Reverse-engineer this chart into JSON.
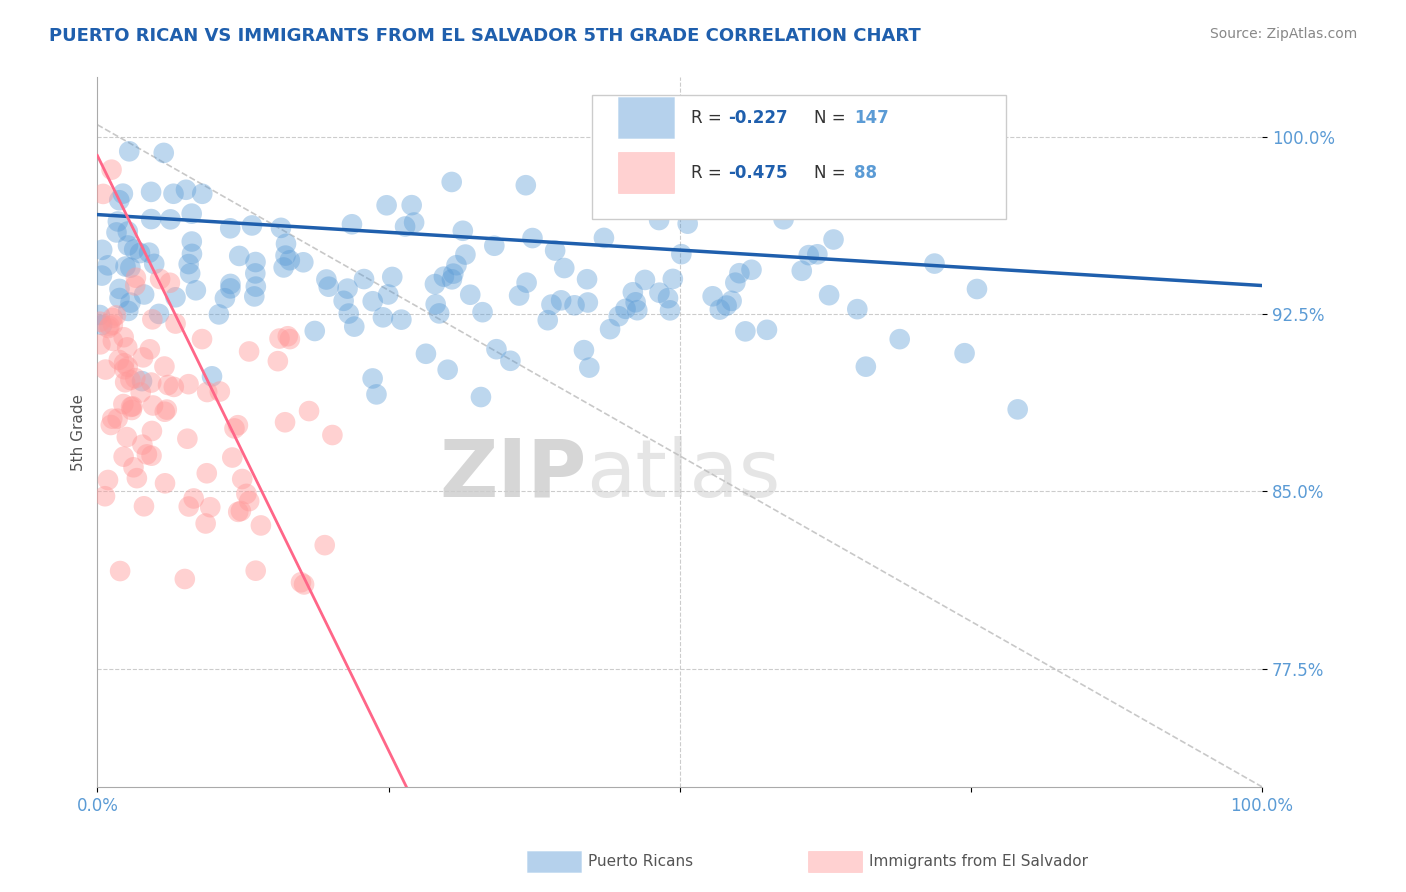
{
  "title": "PUERTO RICAN VS IMMIGRANTS FROM EL SALVADOR 5TH GRADE CORRELATION CHART",
  "source_text": "Source: ZipAtlas.com",
  "ylabel": "5th Grade",
  "watermark_zip": "ZIP",
  "watermark_atlas": "atlas",
  "xmin": 0.0,
  "xmax": 1.0,
  "ymin": 0.725,
  "ymax": 1.025,
  "yticks": [
    0.775,
    0.85,
    0.925,
    1.0
  ],
  "ytick_labels": [
    "77.5%",
    "85.0%",
    "92.5%",
    "100.0%"
  ],
  "blue_R": -0.227,
  "blue_N": 147,
  "pink_R": -0.475,
  "pink_N": 88,
  "blue_color": "#5B9BD5",
  "pink_color": "#FF9999",
  "blue_line_color": "#1F5FAD",
  "pink_line_color": "#FF6688",
  "title_color": "#1F5FAD",
  "axis_color": "#5B9BD5",
  "grid_color": "#CCCCCC",
  "watermark_color": "#CCCCCC",
  "legend_R_color": "#1F5FAD",
  "legend_N_color": "#5B9BD5",
  "blue_legend_label": "Puerto Ricans",
  "pink_legend_label": "Immigrants from El Salvador",
  "blue_scatter_seed": 42,
  "pink_scatter_seed": 99,
  "blue_trend_start_y": 0.967,
  "blue_trend_end_y": 0.937,
  "pink_trend_start_y": 0.992,
  "pink_trend_end_y": 0.67,
  "pink_trend_end_x": 0.32
}
